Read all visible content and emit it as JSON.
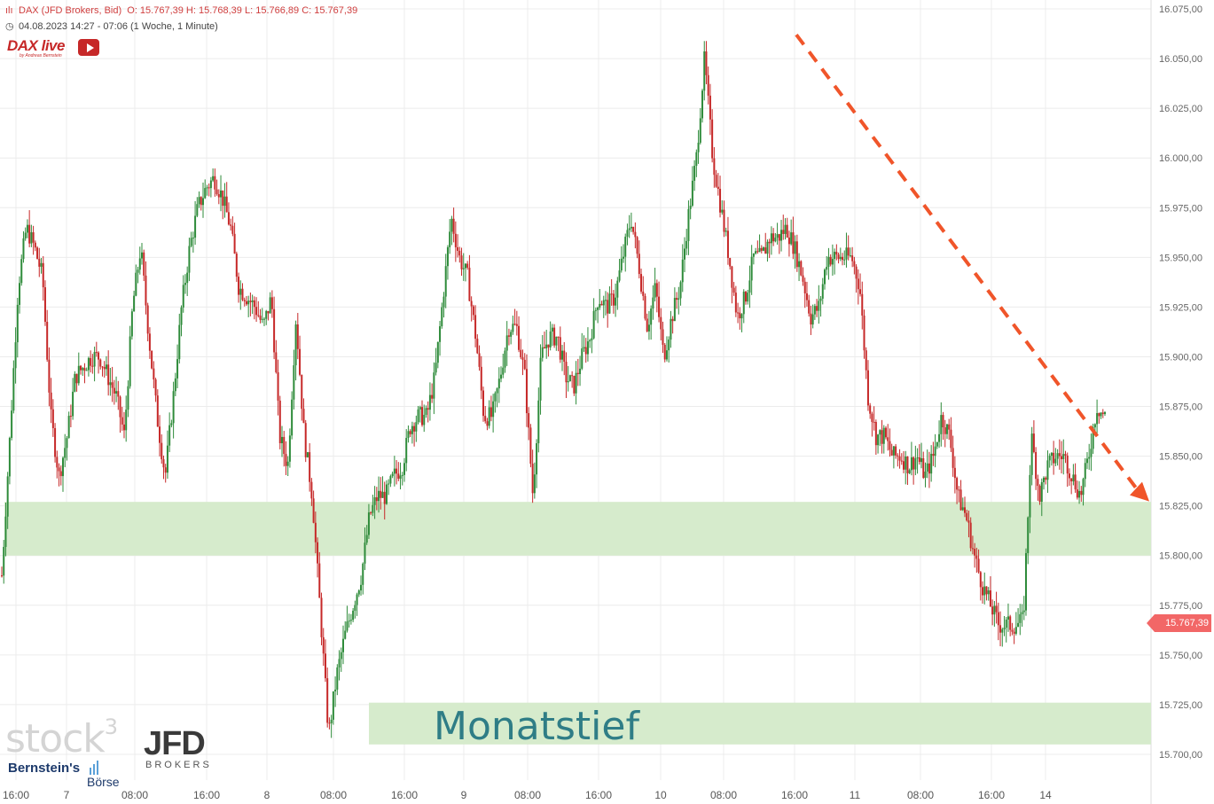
{
  "header": {
    "instrument": "DAX (JFD Brokers, Bid)",
    "ohlc": "O: 15.767,39   H: 15.768,39   L: 15.766,89   C: 15.767,39",
    "timerange": "04.08.2023 14:27 - 07:06   (1 Woche, 1 Minute)"
  },
  "logos": {
    "daxlive": "DAX live",
    "daxlive_sub": "by Andreas Bernstein",
    "stock3": "stock",
    "stock3_sup": "3",
    "jfd": "JFD",
    "jfd_sub": "BROKERS",
    "bernstein": "Bernstein's",
    "boerse": "Börse"
  },
  "last_price_label": "15.767,39",
  "colors": {
    "up": "#2e8b3a",
    "down": "#c62828",
    "zone": "#d6ebcc",
    "arrow": "#f0552a",
    "grid": "#ececec",
    "price_tag": "#f26767"
  },
  "chart_data": {
    "type": "candlestick",
    "title": "",
    "y_axis": {
      "ticks": [
        "16.075,00",
        "16.050,00",
        "16.025,00",
        "16.000,00",
        "15.975,00",
        "15.950,00",
        "15.925,00",
        "15.900,00",
        "15.875,00",
        "15.850,00",
        "15.825,00",
        "15.800,00",
        "15.775,00",
        "15.750,00",
        "15.725,00",
        "15.700,00"
      ],
      "ylim": [
        15684,
        16080
      ],
      "position": "right"
    },
    "x_axis": {
      "labels": [
        "16:00",
        "7",
        "08:00",
        "16:00",
        "8",
        "08:00",
        "16:00",
        "9",
        "08:00",
        "16:00",
        "10",
        "08:00",
        "16:00",
        "11",
        "08:00",
        "16:00",
        "14"
      ]
    },
    "series": [
      {
        "x": [
          0,
          1,
          2,
          3,
          4,
          5,
          6,
          7,
          8,
          9,
          10,
          11,
          12,
          13,
          14,
          15,
          16,
          17,
          18,
          19,
          20,
          21,
          22,
          23,
          24,
          25,
          26,
          27,
          28,
          29,
          30,
          31,
          32,
          33,
          34,
          35,
          36,
          37,
          38,
          39,
          40,
          41,
          42,
          43,
          44,
          45,
          46,
          47,
          48,
          49,
          50,
          51,
          52,
          53,
          54,
          55,
          56,
          57,
          58,
          59,
          60,
          61,
          62,
          63,
          64,
          65,
          66,
          67,
          68,
          69,
          70,
          71,
          72,
          73,
          74,
          75,
          76,
          77,
          78,
          79,
          80,
          81,
          82,
          83,
          84,
          85,
          86,
          87,
          88,
          89,
          90,
          91,
          92,
          93,
          94,
          95,
          96,
          97,
          98,
          99,
          100,
          101,
          102,
          103,
          104,
          105,
          106,
          107,
          108,
          109,
          110,
          111,
          112,
          113,
          114,
          115,
          116,
          117,
          118,
          119,
          120,
          121,
          122,
          123,
          124,
          125,
          126,
          127,
          128,
          129,
          130,
          131,
          132,
          133,
          134,
          135
        ],
        "y": [
          15790,
          15860,
          15935,
          15965,
          15955,
          15940,
          15870,
          15840,
          15860,
          15890,
          15895,
          15900,
          15900,
          15890,
          15880,
          15860,
          15925,
          15955,
          15910,
          15870,
          15840,
          15880,
          15925,
          15955,
          15975,
          15985,
          15990,
          15980,
          15965,
          15935,
          15930,
          15925,
          15915,
          15930,
          15860,
          15845,
          15920,
          15860,
          15830,
          15770,
          15710,
          15740,
          15760,
          15775,
          15790,
          15820,
          15830,
          15830,
          15840,
          15845,
          15865,
          15870,
          15870,
          15890,
          15930,
          15970,
          15950,
          15940,
          15910,
          15870,
          15870,
          15890,
          15915,
          15915,
          15890,
          15830,
          15900,
          15910,
          15910,
          15890,
          15885,
          15900,
          15910,
          15930,
          15925,
          15930,
          15950,
          15970,
          15945,
          15915,
          15935,
          15900,
          15920,
          15935,
          15970,
          16000,
          16050,
          16000,
          15975,
          15950,
          15920,
          15930,
          15950,
          15950,
          15960,
          15960,
          15965,
          15955,
          15940,
          15920,
          15925,
          15950,
          15950,
          15950,
          15950,
          15935,
          15880,
          15860,
          15860,
          15850,
          15850,
          15845,
          15850,
          15840,
          15850,
          15870,
          15860,
          15830,
          15820,
          15800,
          15785,
          15775,
          15765,
          15765,
          15765,
          15767,
          15860,
          15830,
          15845,
          15850,
          15850,
          15840,
          15830,
          15850,
          15875,
          15870
        ],
        "direction_note": "price path over the week"
      }
    ],
    "zones": [
      {
        "from": 15800,
        "to": 15827
      },
      {
        "from": 15705,
        "to": 15726,
        "label": "Monatstief"
      }
    ],
    "trend_arrow": {
      "from": {
        "t": 0.69,
        "y": 16062
      },
      "to": {
        "t": 1.0,
        "y": 15825
      }
    },
    "last_price": 15767.39,
    "grid": true
  }
}
